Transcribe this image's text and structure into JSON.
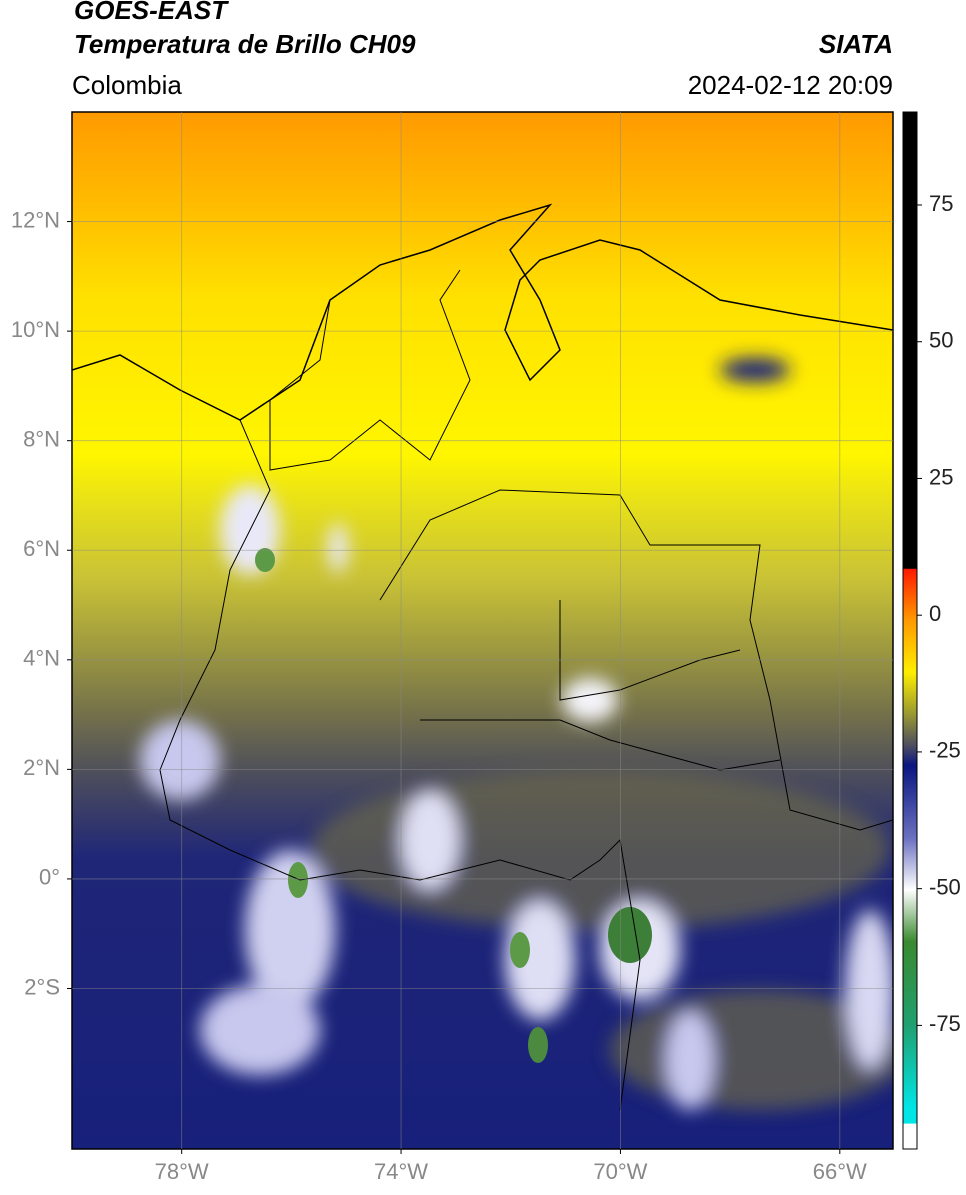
{
  "header": {
    "title": "GOES-EAST",
    "subtitle": "Temperatura de Brillo CH09",
    "source": "SIATA",
    "region": "Colombia",
    "datetime": "2024-02-12 20:09"
  },
  "map": {
    "xlim": [
      -80,
      -65.03
    ],
    "ylim": [
      -4.93,
      14
    ],
    "xticks": [
      {
        "value": -78,
        "label": "78°W"
      },
      {
        "value": -74,
        "label": "74°W"
      },
      {
        "value": -70,
        "label": "70°W"
      },
      {
        "value": -66,
        "label": "66°W"
      }
    ],
    "yticks": [
      {
        "value": 12,
        "label": "12°N"
      },
      {
        "value": 10,
        "label": "10°N"
      },
      {
        "value": 8,
        "label": "8°N"
      },
      {
        "value": 6,
        "label": "6°N"
      },
      {
        "value": 4,
        "label": "4°N"
      },
      {
        "value": 2,
        "label": "2°N"
      },
      {
        "value": 0,
        "label": "0°"
      },
      {
        "value": -2,
        "label": "2°S"
      }
    ],
    "grid": true
  },
  "colorbar": {
    "lim": [
      -97.6,
      92
    ],
    "ticks": [
      75,
      50,
      25,
      0,
      -25,
      -50,
      -75
    ]
  }
}
